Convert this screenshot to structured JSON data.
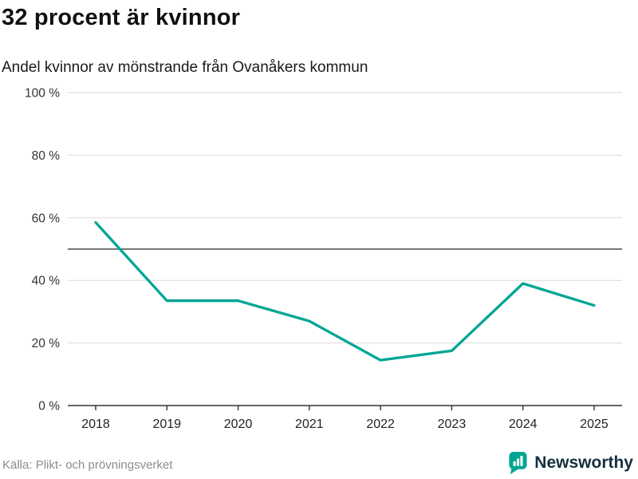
{
  "header": {
    "title": "32 procent är kvinnor",
    "subtitle": "Andel kvinnor av mönstrande från Ovanåkers kommun"
  },
  "chart_data": {
    "type": "line",
    "title": "32 procent är kvinnor",
    "subtitle": "Andel kvinnor av mönstrande från Ovanåkers kommun",
    "x": [
      2018,
      2019,
      2020,
      2021,
      2022,
      2023,
      2024,
      2025
    ],
    "series": [
      {
        "name": "Andel kvinnor av mönstrande",
        "values": [
          58.5,
          33.5,
          33.5,
          27,
          14.5,
          17.5,
          39,
          32
        ]
      }
    ],
    "xlabel": "",
    "ylabel": "",
    "ylim": [
      0,
      100
    ],
    "yticks": [
      0,
      20,
      40,
      60,
      80,
      100
    ],
    "ytick_suffix": " %",
    "reference_line": 50,
    "grid": true,
    "legend": "none",
    "line_color": "#00a693",
    "grid_color": "#d9d9d9",
    "axis_color": "#333333",
    "reference_line_color": "#4d4d4d"
  },
  "footer": {
    "source": "Källa: Plikt- och prövningsverket",
    "brand": "Newsworthy"
  },
  "colors": {
    "accent": "#00a693",
    "brand_text": "#15303f"
  }
}
